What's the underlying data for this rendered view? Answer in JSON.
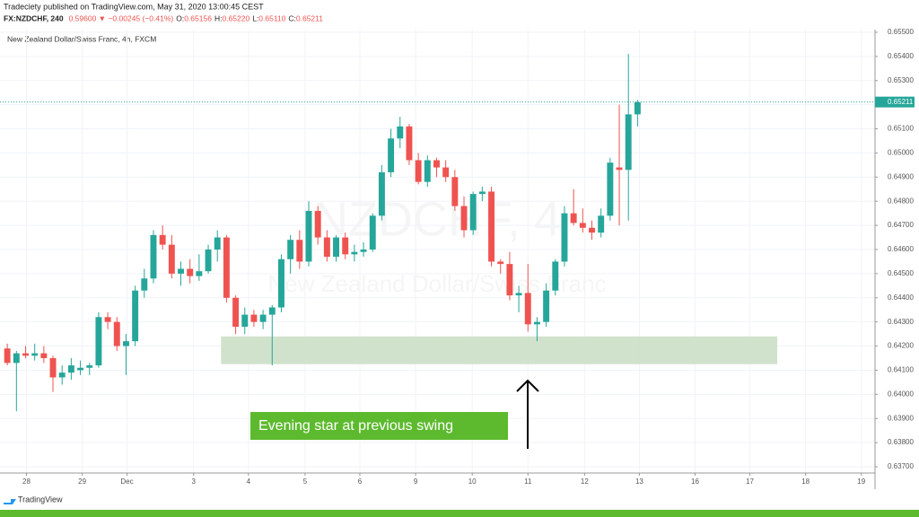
{
  "header": {
    "publisher": "Tradeciety published on TradingView.com, May 31, 2020 13:00:45 CEST",
    "symbol": "FX:NZDCHF, 240",
    "change": "0.59600 ▼ −0.00245 (−0.41%)",
    "ohlc": [
      {
        "key": "O:",
        "value": "0.65156"
      },
      {
        "key": "H:",
        "value": "0.65220"
      },
      {
        "key": "L:",
        "value": "0.65110"
      },
      {
        "key": "C:",
        "value": "0.65211"
      }
    ]
  },
  "footer": {
    "brand": "TradingView"
  },
  "chart_data": {
    "type": "candlestick",
    "title": "New Zealand Dollar/Swiss Franc, 4h, FXCM",
    "watermark": [
      "NZDCHF, 4",
      "New Zealand Dollar/Swiss Franc"
    ],
    "up_color": "#26a69a",
    "down_color": "#ef5350",
    "grid": true,
    "open": [
      0.6419,
      0.6413,
      0.6417,
      0.6416,
      0.6417,
      0.6415,
      0.6407,
      0.6409,
      0.641,
      0.6411,
      0.6412,
      0.6432,
      0.643,
      0.642,
      0.6422,
      0.6443,
      0.6448,
      0.6466,
      0.6462,
      0.645,
      0.6452,
      0.6449,
      0.6451,
      0.646,
      0.6465,
      0.644,
      0.6428,
      0.6433,
      0.643,
      0.6433,
      0.6436,
      0.6456,
      0.6464,
      0.6455,
      0.6476,
      0.6465,
      0.6457,
      0.6465,
      0.6458,
      0.6459,
      0.646,
      0.6474,
      0.6492,
      0.6506,
      0.6511,
      0.6497,
      0.6488,
      0.6497,
      0.6494,
      0.649,
      0.6478,
      0.6468,
      0.6483,
      0.6484,
      0.6455,
      0.6454,
      0.6441,
      0.6442,
      0.6429,
      0.643,
      0.6443,
      0.6455,
      0.6475,
      0.6471,
      0.6469,
      0.6467,
      0.6474,
      0.6494,
      0.6493,
      0.6516
    ],
    "high": [
      0.6421,
      0.6418,
      0.642,
      0.6421,
      0.642,
      0.6416,
      0.6412,
      0.6415,
      0.6414,
      0.6413,
      0.6434,
      0.6434,
      0.6432,
      0.6425,
      0.6445,
      0.6452,
      0.6468,
      0.647,
      0.6466,
      0.6455,
      0.6456,
      0.6458,
      0.6462,
      0.6468,
      0.6466,
      0.6441,
      0.6436,
      0.6435,
      0.6435,
      0.6437,
      0.6458,
      0.6466,
      0.6468,
      0.648,
      0.6478,
      0.6468,
      0.6466,
      0.6467,
      0.6462,
      0.6463,
      0.6475,
      0.6495,
      0.651,
      0.6515,
      0.6512,
      0.65,
      0.6499,
      0.6498,
      0.6497,
      0.6493,
      0.6482,
      0.6484,
      0.6486,
      0.6486,
      0.6456,
      0.6459,
      0.6445,
      0.6454,
      0.6432,
      0.6446,
      0.6456,
      0.6478,
      0.6485,
      0.6477,
      0.6472,
      0.6477,
      0.6498,
      0.652,
      0.6541,
      0.6522
    ],
    "low": [
      0.6412,
      0.6393,
      0.6415,
      0.6414,
      0.6413,
      0.6401,
      0.6404,
      0.6406,
      0.6408,
      0.6408,
      0.6411,
      0.6427,
      0.6418,
      0.6408,
      0.642,
      0.644,
      0.6446,
      0.646,
      0.6448,
      0.6445,
      0.6446,
      0.6447,
      0.645,
      0.6455,
      0.6438,
      0.6425,
      0.6425,
      0.6428,
      0.6427,
      0.6412,
      0.6434,
      0.645,
      0.6452,
      0.6453,
      0.6462,
      0.6455,
      0.6455,
      0.6456,
      0.6455,
      0.6457,
      0.6459,
      0.6472,
      0.649,
      0.6502,
      0.6495,
      0.6487,
      0.6486,
      0.649,
      0.6488,
      0.6476,
      0.6465,
      0.6466,
      0.648,
      0.6453,
      0.645,
      0.6439,
      0.6434,
      0.6426,
      0.6422,
      0.6428,
      0.6441,
      0.6453,
      0.647,
      0.6467,
      0.6464,
      0.6465,
      0.6472,
      0.647,
      0.6472,
      0.6511
    ],
    "close": [
      0.6413,
      0.6417,
      0.6416,
      0.6417,
      0.6415,
      0.6407,
      0.6409,
      0.6412,
      0.6411,
      0.6412,
      0.6432,
      0.643,
      0.642,
      0.6422,
      0.6443,
      0.6448,
      0.6466,
      0.6462,
      0.645,
      0.6452,
      0.6449,
      0.6451,
      0.646,
      0.6465,
      0.644,
      0.6428,
      0.6433,
      0.643,
      0.6433,
      0.6436,
      0.6456,
      0.6464,
      0.6455,
      0.6476,
      0.6465,
      0.6457,
      0.6465,
      0.6458,
      0.6459,
      0.646,
      0.6474,
      0.6492,
      0.6506,
      0.6511,
      0.6497,
      0.6488,
      0.6497,
      0.6494,
      0.649,
      0.6478,
      0.6468,
      0.6483,
      0.6484,
      0.6455,
      0.6454,
      0.6441,
      0.6442,
      0.6429,
      0.643,
      0.6443,
      0.6455,
      0.6475,
      0.6471,
      0.6469,
      0.6467,
      0.6474,
      0.6496,
      0.6493,
      0.6516,
      0.6521
    ],
    "xlim": [
      -0.8,
      95
    ],
    "xticks": [
      {
        "value": 2.1,
        "label": "28"
      },
      {
        "value": 8.2,
        "label": "29"
      },
      {
        "value": 13.1,
        "label": "Dec"
      },
      {
        "value": 20.4,
        "label": "3"
      },
      {
        "value": 26.4,
        "label": "4"
      },
      {
        "value": 32.6,
        "label": "5"
      },
      {
        "value": 38.6,
        "label": "6"
      },
      {
        "value": 44.7,
        "label": "9"
      },
      {
        "value": 50.9,
        "label": "10"
      },
      {
        "value": 57,
        "label": "11"
      },
      {
        "value": 63.2,
        "label": "12"
      },
      {
        "value": 69.2,
        "label": "13"
      },
      {
        "value": 75.3,
        "label": "16"
      },
      {
        "value": 81.3,
        "label": "17"
      },
      {
        "value": 87.4,
        "label": "18"
      },
      {
        "value": 93.5,
        "label": "19"
      }
    ],
    "ylim": [
      0.63674,
      0.65511
    ],
    "yticks": [
      {
        "value": 0.637,
        "label": "0.63700"
      },
      {
        "value": 0.638,
        "label": "0.63800"
      },
      {
        "value": 0.639,
        "label": "0.63900"
      },
      {
        "value": 0.64,
        "label": "0.64000"
      },
      {
        "value": 0.641,
        "label": "0.64100"
      },
      {
        "value": 0.642,
        "label": "0.64200"
      },
      {
        "value": 0.643,
        "label": "0.64300"
      },
      {
        "value": 0.644,
        "label": "0.64400"
      },
      {
        "value": 0.645,
        "label": "0.64500"
      },
      {
        "value": 0.646,
        "label": "0.64600"
      },
      {
        "value": 0.647,
        "label": "0.64700"
      },
      {
        "value": 0.648,
        "label": "0.64800"
      },
      {
        "value": 0.649,
        "label": "0.64900"
      },
      {
        "value": 0.65,
        "label": "0.65000"
      },
      {
        "value": 0.651,
        "label": "0.65100"
      },
      {
        "value": 0.652,
        "label": "0.65200"
      },
      {
        "value": 0.653,
        "label": "0.65300"
      },
      {
        "value": 0.654,
        "label": "0.65400"
      },
      {
        "value": 0.655,
        "label": "0.65500"
      }
    ],
    "last_price": {
      "value": 0.65211,
      "label": "0.65211",
      "color": "#26a69a"
    },
    "zone": {
      "x": [
        23.4,
        84.3
      ],
      "y": [
        0.64125,
        0.6424
      ],
      "color": "#c9ddc3"
    },
    "annotation": "Evening star at previous swing"
  }
}
